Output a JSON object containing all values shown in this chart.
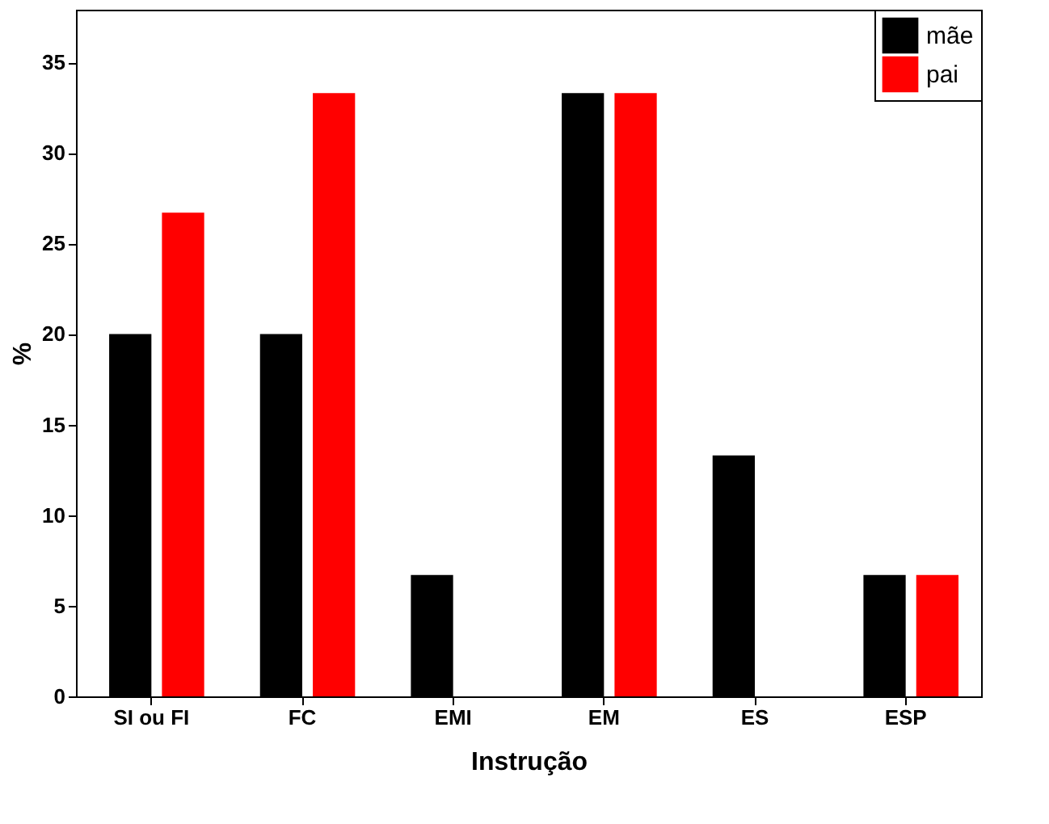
{
  "chart_data": {
    "type": "bar",
    "xlabel": "Instrução",
    "ylabel": "%",
    "categories": [
      "SI ou FI",
      "FC",
      "EMI",
      "EM",
      "ES",
      "ESP"
    ],
    "series": [
      {
        "name": "mãe",
        "color": "#000000",
        "values": [
          20,
          20,
          6.7,
          33.3,
          13.3,
          6.7
        ]
      },
      {
        "name": "pai",
        "color": "#ff0000",
        "values": [
          26.7,
          33.3,
          0,
          33.3,
          0,
          6.7
        ]
      }
    ],
    "ylim": [
      0,
      37.9
    ],
    "yticks": [
      0,
      5,
      10,
      15,
      20,
      25,
      30,
      35
    ],
    "grid": false,
    "legend": "top right"
  }
}
